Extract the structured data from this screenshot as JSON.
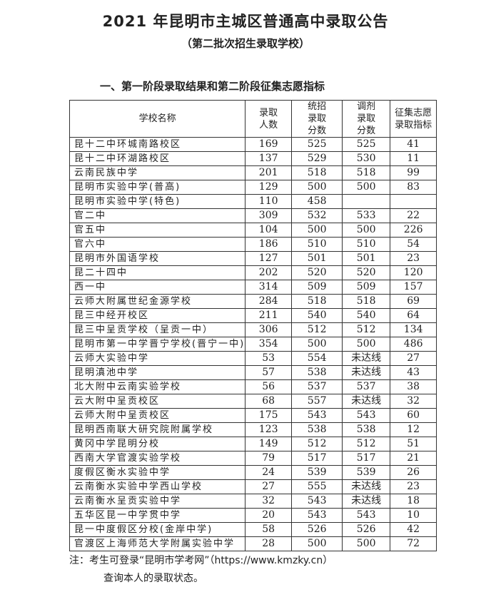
{
  "title": "2021 年昆明市主城区普通高中录取公告",
  "subtitle": "（第二批次招生录取学校）",
  "section_heading": "一、第一阶段录取结果和第二阶段征集志愿指标",
  "table": {
    "headers": [
      "学校名称",
      "录取人数",
      "统招录取分数",
      "调剂录取分数",
      "征集志愿录取指标"
    ],
    "rows": [
      [
        "昆十二中环城南路校区",
        "169",
        "525",
        "525",
        "41"
      ],
      [
        "昆十二中环湖路校区",
        "137",
        "529",
        "530",
        "11"
      ],
      [
        "云南民族中学",
        "201",
        "518",
        "518",
        "99"
      ],
      [
        "昆明市实验中学(普高)",
        "129",
        "500",
        "500",
        "83"
      ],
      [
        "昆明市实验中学(特色)",
        "110",
        "458",
        "",
        ""
      ],
      [
        "官二中",
        "309",
        "532",
        "533",
        "22"
      ],
      [
        "官五中",
        "104",
        "500",
        "500",
        "226"
      ],
      [
        "官六中",
        "186",
        "510",
        "510",
        "54"
      ],
      [
        "昆明市外国语学校",
        "127",
        "501",
        "501",
        "23"
      ],
      [
        "昆二十四中",
        "202",
        "520",
        "520",
        "120"
      ],
      [
        "西一中",
        "314",
        "509",
        "509",
        "157"
      ],
      [
        "云师大附属世纪金源学校",
        "284",
        "518",
        "518",
        "69"
      ],
      [
        "昆三中经开校区",
        "211",
        "540",
        "540",
        "64"
      ],
      [
        "昆三中呈贡学校（呈贡一中）",
        "306",
        "512",
        "512",
        "134"
      ],
      [
        "昆明市第一中学晋宁学校(晋宁一中)",
        "354",
        "500",
        "500",
        "486"
      ],
      [
        "云师大实验中学",
        "53",
        "554",
        "未达线",
        "27"
      ],
      [
        "昆明滇池中学",
        "57",
        "538",
        "未达线",
        "43"
      ],
      [
        "北大附中云南实验学校",
        "56",
        "537",
        "537",
        "38"
      ],
      [
        "云大附中呈贡校区",
        "68",
        "557",
        "未达线",
        "32"
      ],
      [
        "云师大附中呈贡校区",
        "175",
        "543",
        "543",
        "60"
      ],
      [
        "昆明西南联大研究院附属学校",
        "123",
        "538",
        "538",
        "12"
      ],
      [
        "黄冈中学昆明分校",
        "149",
        "512",
        "512",
        "51"
      ],
      [
        "西南大学官渡实验学校",
        "79",
        "517",
        "517",
        "21"
      ],
      [
        "度假区衡水实验中学",
        "24",
        "539",
        "539",
        "26"
      ],
      [
        "云南衡水实验中学西山学校",
        "27",
        "555",
        "未达线",
        "23"
      ],
      [
        "云南衡水呈贡实验中学",
        "32",
        "543",
        "未达线",
        "18"
      ],
      [
        "五华区昆一中学贯中学",
        "20",
        "543",
        "543",
        "10"
      ],
      [
        "昆一中度假区分校(金岸中学)",
        "58",
        "526",
        "526",
        "42"
      ],
      [
        "官渡区上海师范大学附属实验中学",
        "28",
        "500",
        "500",
        "72"
      ]
    ]
  },
  "note": {
    "line1": "注：考生可登录“昆明市学考网”（https://www.kmzky.cn）",
    "line2": "查询本人的录取状态。"
  }
}
